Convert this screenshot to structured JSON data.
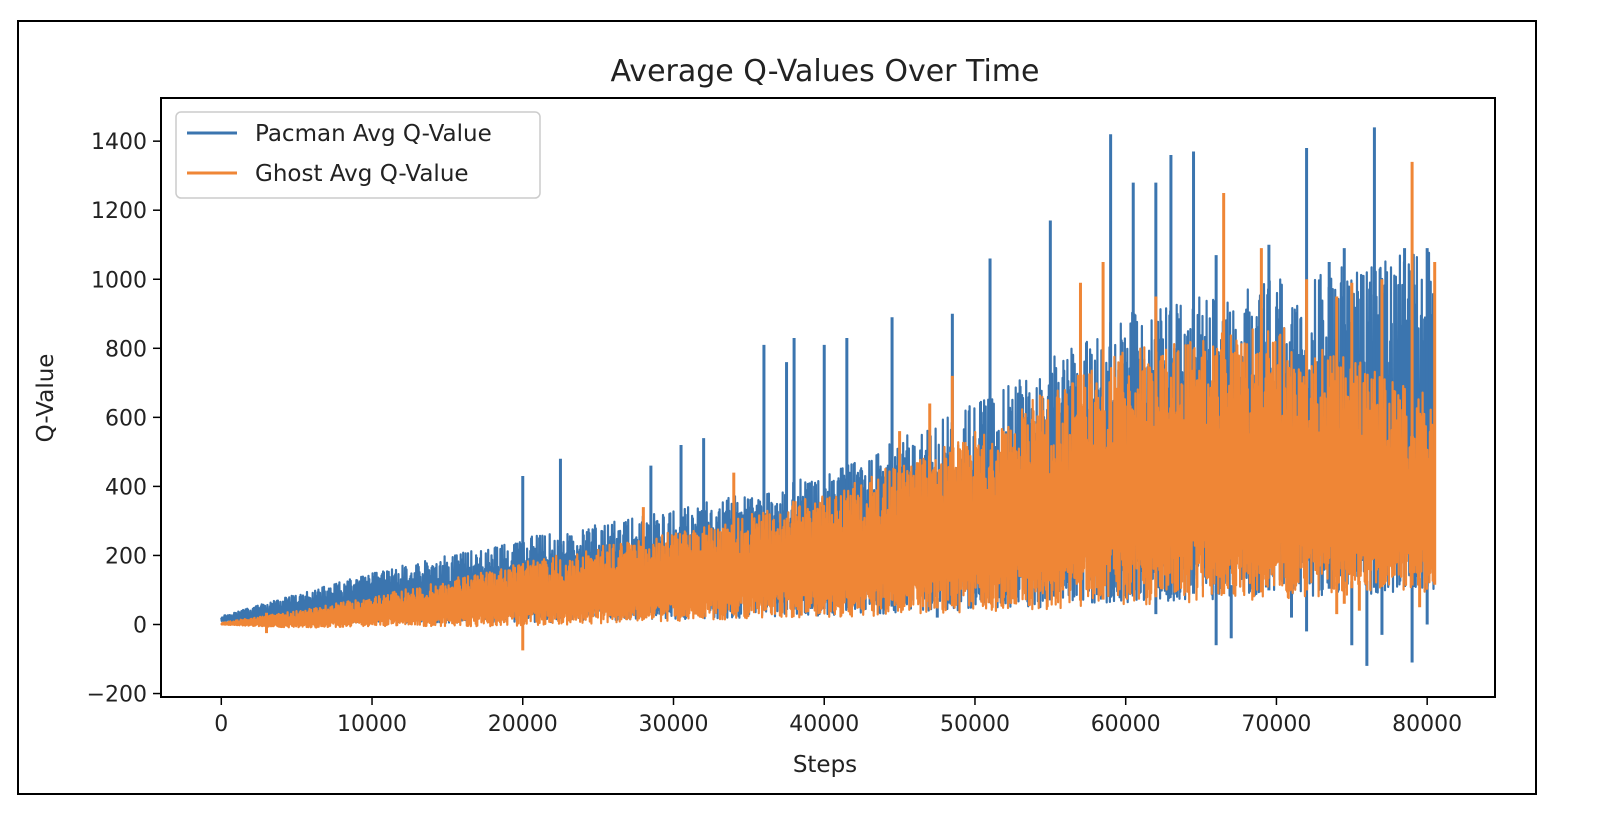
{
  "chart_data": {
    "type": "line",
    "title": "Average Q-Values Over Time",
    "xlabel": "Steps",
    "ylabel": "Q-Value",
    "xlim": [
      -4000,
      84500
    ],
    "ylim": [
      -210,
      1525
    ],
    "xticks": [
      0,
      10000,
      20000,
      30000,
      40000,
      50000,
      60000,
      70000,
      80000
    ],
    "xtick_labels": [
      "0",
      "10000",
      "20000",
      "30000",
      "40000",
      "50000",
      "60000",
      "70000",
      "80000"
    ],
    "yticks": [
      -200,
      0,
      200,
      400,
      600,
      800,
      1000,
      1200,
      1400
    ],
    "ytick_labels": [
      "−200",
      "0",
      "200",
      "400",
      "600",
      "800",
      "1000",
      "1200",
      "1400"
    ],
    "grid": false,
    "legend_position": "top-left",
    "series": [
      {
        "name": "Pacman Avg Q-Value",
        "color": "#3b75af",
        "envelope_x": [
          0,
          10000,
          20000,
          30000,
          40000,
          50000,
          60000,
          70000,
          80000
        ],
        "envelope_low": [
          10,
          5,
          5,
          15,
          25,
          40,
          60,
          80,
          90
        ],
        "envelope_high": [
          25,
          150,
          250,
          330,
          440,
          650,
          900,
          1000,
          1090
        ],
        "spikes": [
          [
            20000,
            430
          ],
          [
            22500,
            480
          ],
          [
            28500,
            460
          ],
          [
            30500,
            520
          ],
          [
            32000,
            540
          ],
          [
            36000,
            810
          ],
          [
            37500,
            760
          ],
          [
            38000,
            830
          ],
          [
            40000,
            810
          ],
          [
            41500,
            830
          ],
          [
            44500,
            890
          ],
          [
            48500,
            900
          ],
          [
            51000,
            1060
          ],
          [
            55000,
            1170
          ],
          [
            59000,
            1420
          ],
          [
            60500,
            1280
          ],
          [
            62000,
            1280
          ],
          [
            63000,
            1360
          ],
          [
            64500,
            1370
          ],
          [
            66000,
            1070
          ],
          [
            69500,
            1100
          ],
          [
            72000,
            1380
          ],
          [
            73500,
            1050
          ],
          [
            74500,
            1090
          ],
          [
            76500,
            1440
          ],
          [
            78500,
            1090
          ],
          [
            80000,
            1090
          ]
        ],
        "dips": [
          [
            47500,
            20
          ],
          [
            62000,
            30
          ],
          [
            66000,
            -60
          ],
          [
            67000,
            -40
          ],
          [
            71000,
            20
          ],
          [
            72000,
            -20
          ],
          [
            75000,
            -60
          ],
          [
            76000,
            -120
          ],
          [
            77000,
            -30
          ],
          [
            79000,
            -110
          ],
          [
            80000,
            0
          ]
        ]
      },
      {
        "name": "Ghost Avg Q-Value",
        "color": "#ef8636",
        "envelope_x": [
          0,
          5000,
          10000,
          20000,
          30000,
          40000,
          50000,
          60000,
          70000,
          80000
        ],
        "envelope_low": [
          0,
          -10,
          -5,
          -5,
          10,
          20,
          35,
          55,
          75,
          95
        ],
        "envelope_high": [
          5,
          40,
          80,
          180,
          270,
          380,
          560,
          800,
          870,
          670
        ],
        "spikes": [
          [
            28000,
            340
          ],
          [
            34000,
            440
          ],
          [
            45000,
            560
          ],
          [
            47000,
            640
          ],
          [
            48500,
            720
          ],
          [
            57000,
            990
          ],
          [
            58500,
            1050
          ],
          [
            62000,
            950
          ],
          [
            66500,
            1250
          ],
          [
            69000,
            1090
          ],
          [
            72000,
            1000
          ],
          [
            74000,
            950
          ],
          [
            75000,
            990
          ],
          [
            77000,
            1000
          ],
          [
            79000,
            1340
          ],
          [
            80500,
            1050
          ]
        ],
        "dips": [
          [
            3000,
            -25
          ],
          [
            20000,
            -75
          ],
          [
            74000,
            30
          ],
          [
            74500,
            60
          ],
          [
            75500,
            40
          ],
          [
            79500,
            50
          ]
        ]
      }
    ]
  }
}
